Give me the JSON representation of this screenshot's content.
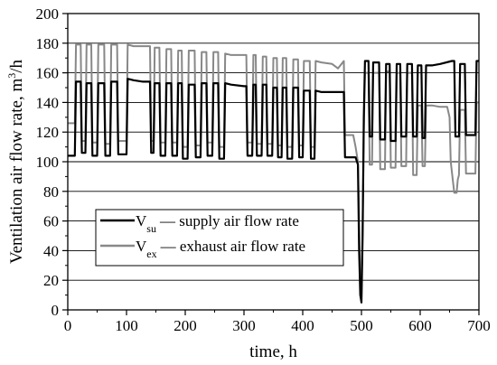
{
  "chart_data": {
    "type": "line",
    "xlabel": "time, h",
    "ylabel_main": "Ventilation air flow rate, m",
    "ylabel_sup": "3",
    "ylabel_tail": "/h",
    "xlim": [
      0,
      700
    ],
    "ylim": [
      0,
      200
    ],
    "x_ticks": [
      "0",
      "100",
      "200",
      "300",
      "400",
      "500",
      "600",
      "700"
    ],
    "y_ticks": [
      "0",
      "20",
      "40",
      "60",
      "80",
      "100",
      "120",
      "140",
      "160",
      "180",
      "200"
    ],
    "grid": "horizontal",
    "legend_position": "lower-left",
    "series": [
      {
        "legend_symbol": "V",
        "legend_sub": "su",
        "legend_text": "— supply air flow rate",
        "color": "#000000",
        "points": [
          [
            0,
            104
          ],
          [
            12,
            104
          ],
          [
            14,
            154
          ],
          [
            22,
            154
          ],
          [
            24,
            106
          ],
          [
            30,
            106
          ],
          [
            32,
            153
          ],
          [
            40,
            153
          ],
          [
            42,
            104
          ],
          [
            50,
            104
          ],
          [
            52,
            153
          ],
          [
            62,
            153
          ],
          [
            64,
            104
          ],
          [
            72,
            104
          ],
          [
            74,
            154
          ],
          [
            84,
            154
          ],
          [
            86,
            105
          ],
          [
            100,
            105
          ],
          [
            102,
            156
          ],
          [
            112,
            155
          ],
          [
            128,
            154
          ],
          [
            140,
            154
          ],
          [
            142,
            106
          ],
          [
            146,
            106
          ],
          [
            148,
            153
          ],
          [
            156,
            153
          ],
          [
            158,
            104
          ],
          [
            166,
            104
          ],
          [
            168,
            153
          ],
          [
            176,
            153
          ],
          [
            178,
            104
          ],
          [
            186,
            104
          ],
          [
            188,
            153
          ],
          [
            194,
            153
          ],
          [
            196,
            102
          ],
          [
            204,
            102
          ],
          [
            206,
            152
          ],
          [
            216,
            152
          ],
          [
            218,
            103
          ],
          [
            226,
            103
          ],
          [
            228,
            153
          ],
          [
            236,
            153
          ],
          [
            238,
            104
          ],
          [
            246,
            104
          ],
          [
            248,
            153
          ],
          [
            256,
            153
          ],
          [
            258,
            102
          ],
          [
            266,
            102
          ],
          [
            268,
            153
          ],
          [
            278,
            152
          ],
          [
            300,
            151
          ],
          [
            304,
            151
          ],
          [
            306,
            104
          ],
          [
            314,
            104
          ],
          [
            316,
            152
          ],
          [
            320,
            152
          ],
          [
            322,
            104
          ],
          [
            330,
            104
          ],
          [
            332,
            152
          ],
          [
            338,
            152
          ],
          [
            340,
            104
          ],
          [
            348,
            104
          ],
          [
            350,
            150
          ],
          [
            356,
            150
          ],
          [
            358,
            103
          ],
          [
            364,
            103
          ],
          [
            366,
            150
          ],
          [
            372,
            150
          ],
          [
            374,
            102
          ],
          [
            382,
            102
          ],
          [
            384,
            150
          ],
          [
            392,
            150
          ],
          [
            394,
            103
          ],
          [
            400,
            103
          ],
          [
            402,
            148
          ],
          [
            412,
            148
          ],
          [
            414,
            102
          ],
          [
            420,
            102
          ],
          [
            422,
            148
          ],
          [
            432,
            147
          ],
          [
            450,
            147
          ],
          [
            470,
            147
          ],
          [
            472,
            103
          ],
          [
            486,
            103
          ],
          [
            490,
            103
          ],
          [
            494,
            98
          ],
          [
            496,
            40
          ],
          [
            498,
            10
          ],
          [
            500,
            5
          ],
          [
            502,
            50
          ],
          [
            504,
            130
          ],
          [
            506,
            168
          ],
          [
            512,
            168
          ],
          [
            514,
            117
          ],
          [
            518,
            117
          ],
          [
            520,
            167
          ],
          [
            530,
            167
          ],
          [
            532,
            115
          ],
          [
            540,
            115
          ],
          [
            542,
            166
          ],
          [
            548,
            166
          ],
          [
            550,
            114
          ],
          [
            558,
            114
          ],
          [
            560,
            166
          ],
          [
            566,
            166
          ],
          [
            568,
            117
          ],
          [
            576,
            117
          ],
          [
            578,
            166
          ],
          [
            586,
            166
          ],
          [
            588,
            117
          ],
          [
            594,
            117
          ],
          [
            596,
            165
          ],
          [
            602,
            165
          ],
          [
            604,
            116
          ],
          [
            608,
            116
          ],
          [
            610,
            165
          ],
          [
            620,
            165
          ],
          [
            634,
            166
          ],
          [
            654,
            168
          ],
          [
            658,
            168
          ],
          [
            660,
            117
          ],
          [
            666,
            117
          ],
          [
            668,
            166
          ],
          [
            676,
            166
          ],
          [
            678,
            118
          ],
          [
            694,
            118
          ],
          [
            696,
            168
          ],
          [
            700,
            168
          ]
        ]
      },
      {
        "legend_symbol": "V",
        "legend_sub": "ex",
        "legend_text": "— exhaust air flow rate",
        "color": "#888888",
        "points": [
          [
            0,
            126
          ],
          [
            12,
            126
          ],
          [
            14,
            179
          ],
          [
            22,
            179
          ],
          [
            24,
            114
          ],
          [
            30,
            114
          ],
          [
            32,
            179
          ],
          [
            40,
            179
          ],
          [
            42,
            113
          ],
          [
            50,
            113
          ],
          [
            52,
            179
          ],
          [
            62,
            179
          ],
          [
            64,
            112
          ],
          [
            72,
            112
          ],
          [
            74,
            179
          ],
          [
            84,
            179
          ],
          [
            86,
            114
          ],
          [
            100,
            114
          ],
          [
            102,
            179
          ],
          [
            112,
            178
          ],
          [
            128,
            178
          ],
          [
            140,
            178
          ],
          [
            142,
            114
          ],
          [
            146,
            114
          ],
          [
            148,
            177
          ],
          [
            156,
            177
          ],
          [
            158,
            113
          ],
          [
            166,
            113
          ],
          [
            168,
            176
          ],
          [
            176,
            176
          ],
          [
            178,
            113
          ],
          [
            186,
            113
          ],
          [
            188,
            175
          ],
          [
            194,
            175
          ],
          [
            196,
            110
          ],
          [
            204,
            110
          ],
          [
            206,
            175
          ],
          [
            216,
            175
          ],
          [
            218,
            111
          ],
          [
            226,
            111
          ],
          [
            228,
            174
          ],
          [
            236,
            174
          ],
          [
            238,
            113
          ],
          [
            246,
            113
          ],
          [
            248,
            174
          ],
          [
            256,
            174
          ],
          [
            258,
            110
          ],
          [
            266,
            110
          ],
          [
            268,
            173
          ],
          [
            278,
            172
          ],
          [
            300,
            172
          ],
          [
            304,
            172
          ],
          [
            306,
            113
          ],
          [
            314,
            113
          ],
          [
            316,
            172
          ],
          [
            320,
            172
          ],
          [
            322,
            112
          ],
          [
            330,
            112
          ],
          [
            332,
            171
          ],
          [
            338,
            171
          ],
          [
            340,
            112
          ],
          [
            348,
            112
          ],
          [
            350,
            170
          ],
          [
            356,
            170
          ],
          [
            358,
            111
          ],
          [
            364,
            111
          ],
          [
            366,
            170
          ],
          [
            372,
            170
          ],
          [
            374,
            110
          ],
          [
            382,
            110
          ],
          [
            384,
            169
          ],
          [
            392,
            169
          ],
          [
            394,
            111
          ],
          [
            400,
            111
          ],
          [
            402,
            168
          ],
          [
            412,
            168
          ],
          [
            414,
            110
          ],
          [
            420,
            110
          ],
          [
            422,
            168
          ],
          [
            432,
            167
          ],
          [
            450,
            166
          ],
          [
            460,
            163
          ],
          [
            470,
            168
          ],
          [
            472,
            118
          ],
          [
            486,
            118
          ],
          [
            490,
            110
          ],
          [
            494,
            100
          ],
          [
            496,
            60
          ],
          [
            498,
            20
          ],
          [
            500,
            8
          ],
          [
            502,
            60
          ],
          [
            504,
            120
          ],
          [
            506,
            160
          ],
          [
            512,
            160
          ],
          [
            514,
            98
          ],
          [
            518,
            98
          ],
          [
            520,
            160
          ],
          [
            530,
            160
          ],
          [
            532,
            95
          ],
          [
            540,
            95
          ],
          [
            542,
            161
          ],
          [
            548,
            161
          ],
          [
            550,
            96
          ],
          [
            558,
            96
          ],
          [
            560,
            160
          ],
          [
            566,
            160
          ],
          [
            568,
            97
          ],
          [
            576,
            97
          ],
          [
            578,
            160
          ],
          [
            586,
            160
          ],
          [
            588,
            91
          ],
          [
            594,
            91
          ],
          [
            596,
            138
          ],
          [
            602,
            138
          ],
          [
            604,
            97
          ],
          [
            608,
            97
          ],
          [
            610,
            138
          ],
          [
            620,
            138
          ],
          [
            634,
            137
          ],
          [
            646,
            137
          ],
          [
            650,
            130
          ],
          [
            652,
            100
          ],
          [
            656,
            86
          ],
          [
            658,
            79
          ],
          [
            662,
            79
          ],
          [
            664,
            88
          ],
          [
            666,
            91
          ],
          [
            668,
            135
          ],
          [
            676,
            135
          ],
          [
            678,
            92
          ],
          [
            694,
            92
          ],
          [
            696,
            140
          ],
          [
            700,
            140
          ]
        ]
      }
    ]
  }
}
